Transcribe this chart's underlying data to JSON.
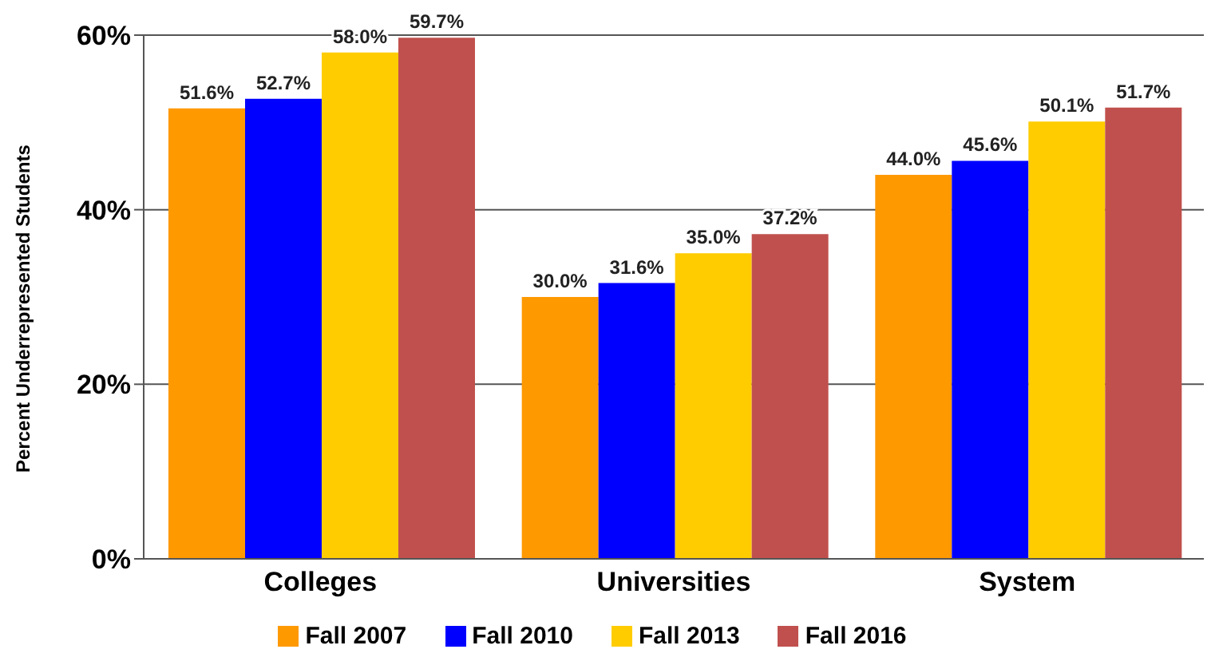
{
  "chart_data": {
    "type": "bar",
    "ylabel": "Percent Underrepresented Students",
    "categories": [
      "Colleges",
      "Universities",
      "System"
    ],
    "series": [
      {
        "name": "Fall 2007",
        "color": "#ff9900",
        "values": [
          51.6,
          30.0,
          44.0
        ],
        "value_labels": [
          "51.6%",
          "30.0%",
          "44.0%"
        ]
      },
      {
        "name": "Fall 2010",
        "color": "#0000ff",
        "values": [
          52.7,
          31.6,
          45.6
        ],
        "value_labels": [
          "52.7%",
          "31.6%",
          "45.6%"
        ]
      },
      {
        "name": "Fall 2013",
        "color": "#ffcc00",
        "values": [
          58.0,
          35.0,
          50.1
        ],
        "value_labels": [
          "58.0%",
          "35.0%",
          "50.1%"
        ]
      },
      {
        "name": "Fall 2016",
        "color": "#c0504d",
        "values": [
          59.7,
          37.2,
          51.7
        ],
        "value_labels": [
          "59.7%",
          "37.2%",
          "51.7%"
        ]
      }
    ],
    "ylim": [
      0,
      60
    ],
    "yticks": [
      {
        "value": 0,
        "label": "0%"
      },
      {
        "value": 20,
        "label": "20%"
      },
      {
        "value": 40,
        "label": "40%"
      },
      {
        "value": 60,
        "label": "60%"
      }
    ],
    "grid": "y",
    "legend": "bottom"
  }
}
